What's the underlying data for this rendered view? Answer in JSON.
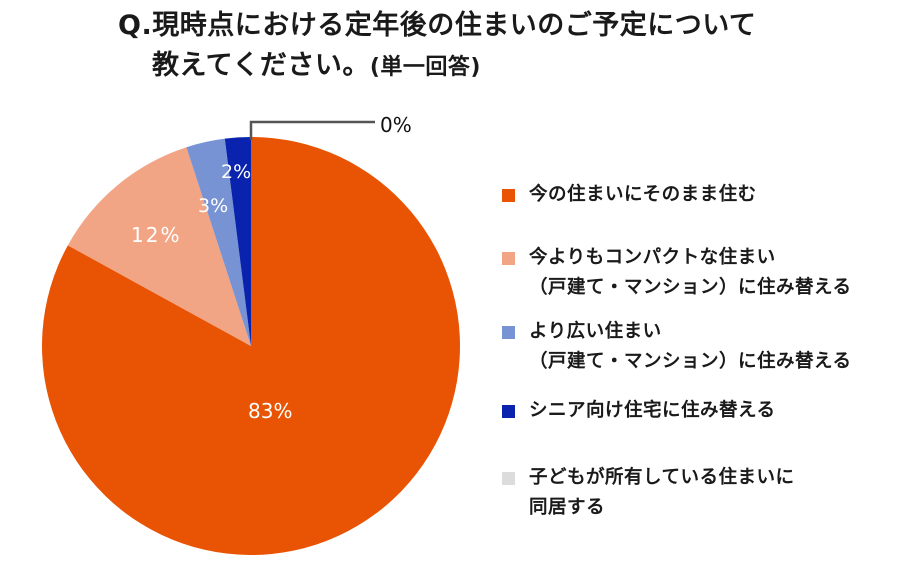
{
  "title": {
    "line1": "Q.現時点における定年後の住まいのご予定について",
    "line2": "教えてください。",
    "line2_suffix": "(単一回答)"
  },
  "chart_data": {
    "type": "pie",
    "title": "Q.現時点における定年後の住まいのご予定について教えてください。(単一回答)",
    "start_angle": "12 o'clock",
    "direction": "clockwise",
    "legend_position": "right",
    "slices": [
      {
        "label": "今の住まいにそのまま住む",
        "value": 83,
        "display": "83%",
        "color": "#E85404"
      },
      {
        "label": "今よりもコンパクトな住まい（戸建て・マンション）に住み替える",
        "value": 12,
        "display": "12%",
        "color": "#F1A584"
      },
      {
        "label": "より広い住まい（戸建て・マンション）に住み替える",
        "value": 3,
        "display": "3%",
        "color": "#7893D4"
      },
      {
        "label": "シニア向け住宅に住み替える",
        "value": 2,
        "display": "2%",
        "color": "#0A23AE"
      },
      {
        "label": "子どもが所有している住まいに同居する",
        "value": 0,
        "display": "0%",
        "color": "#DCDCDC"
      }
    ]
  },
  "pie_labels": {
    "s0": "83%",
    "s1": "12%",
    "s2": "3%",
    "s3": "2%",
    "s4": "0%"
  },
  "legend": {
    "items": [
      {
        "label": "今の住まいにそのまま住む",
        "color": "#E85404"
      },
      {
        "label": "今よりもコンパクトな住まい\n（戸建て・マンション）に住み替える",
        "color": "#F1A584"
      },
      {
        "label": "より広い住まい\n（戸建て・マンション）に住み替える",
        "color": "#7893D4"
      },
      {
        "label": "シニア向け住宅に住み替える",
        "color": "#0A23AE"
      },
      {
        "label": "子どもが所有している住まいに\n同居する",
        "color": "#DCDCDC"
      }
    ]
  }
}
